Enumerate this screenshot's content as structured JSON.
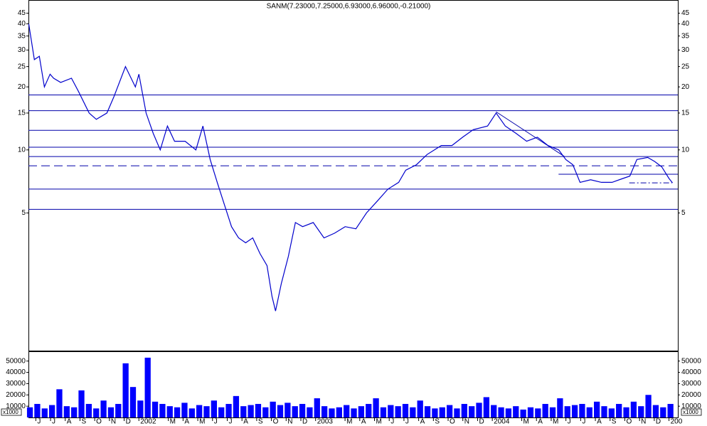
{
  "chart_data": [
    {
      "type": "line",
      "title": "SANM(7.23000,7.25000,6.93000,6.96000,-0.21000)",
      "log_scale": true,
      "color": "#0000cc",
      "xlim": [
        -0.5,
        43.6
      ],
      "ylim": [
        1.1,
        52
      ],
      "yticks": [
        5,
        10,
        15,
        20,
        25,
        30,
        35,
        40,
        45
      ],
      "x": [
        -0.48,
        -0.1,
        0.24,
        0.58,
        0.97,
        1.21,
        1.69,
        2.42,
        2.9,
        3.62,
        4.11,
        4.83,
        5.31,
        6.09,
        6.76,
        7.0,
        7.49,
        7.97,
        8.45,
        8.94,
        9.42,
        10.14,
        10.87,
        11.35,
        11.84,
        12.32,
        12.8,
        13.29,
        13.77,
        14.25,
        14.73,
        15.22,
        15.7,
        16.04,
        16.28,
        16.67,
        17.15,
        17.63,
        18.12,
        18.84,
        19.57,
        20.29,
        21.01,
        21.74,
        22.46,
        23.19,
        23.91,
        24.64,
        25.12,
        25.85,
        26.57,
        27.54,
        28.26,
        28.99,
        29.71,
        30.68,
        31.26,
        31.88,
        32.61,
        33.33,
        34.06,
        34.78,
        35.51,
        35.99,
        36.47,
        36.96,
        37.68,
        38.41,
        39.13,
        39.86,
        40.34,
        40.82,
        41.55,
        42.03,
        42.51,
        43.0,
        43.24
      ],
      "values": [
        40,
        27,
        28,
        20,
        23,
        22,
        21,
        22,
        19,
        15,
        14,
        15,
        18,
        25,
        20,
        23,
        15,
        12,
        10,
        13,
        11,
        11,
        10,
        13,
        9,
        7,
        5.5,
        4.3,
        3.8,
        3.6,
        3.8,
        3.2,
        2.8,
        2.0,
        1.7,
        2.3,
        3.1,
        4.5,
        4.3,
        4.5,
        3.8,
        4.0,
        4.3,
        4.2,
        5.0,
        5.7,
        6.5,
        7.0,
        8.0,
        8.5,
        9.5,
        10.5,
        10.5,
        11.5,
        12.5,
        13,
        15,
        13,
        12,
        11,
        11.5,
        10.5,
        10,
        9,
        8.5,
        7,
        7.2,
        7,
        7,
        7.3,
        7.5,
        9,
        9.2,
        8.8,
        8.3,
        7.3,
        6.96
      ],
      "levels": [
        {
          "value": 18.3,
          "style": "solid"
        },
        {
          "value": 15.4,
          "style": "solid"
        },
        {
          "value": 12.4,
          "style": "solid"
        },
        {
          "value": 10.3,
          "style": "solid"
        },
        {
          "value": 9.3,
          "style": "solid"
        },
        {
          "value": 8.4,
          "style": "dashed"
        },
        {
          "value": 6.5,
          "style": "solid"
        },
        {
          "value": 5.2,
          "style": "solid"
        },
        {
          "value": 7.65,
          "style": "solid",
          "x_range": [
            35.5,
            43.6
          ]
        },
        {
          "value": 6.96,
          "style": "dashdot",
          "x_range": [
            40.3,
            43.2
          ]
        }
      ],
      "trendlines": [
        {
          "x": [
            31.26,
            35.9
          ],
          "y": [
            15.2,
            9.3
          ]
        }
      ]
    },
    {
      "type": "bar",
      "color": "#0000ff",
      "unit_label": "x1000",
      "xlim": [
        -0.5,
        43.6
      ],
      "ylim": [
        0,
        58000
      ],
      "yticks": [
        10000,
        20000,
        30000,
        40000,
        50000
      ],
      "xticks": [
        {
          "value": 0,
          "label": "J"
        },
        {
          "value": 1,
          "label": "J"
        },
        {
          "value": 2,
          "label": "A"
        },
        {
          "value": 3,
          "label": "S"
        },
        {
          "value": 4,
          "label": "O"
        },
        {
          "value": 5,
          "label": "N"
        },
        {
          "value": 6,
          "label": "D"
        },
        {
          "value": 7,
          "label": "2002"
        },
        {
          "value": 9,
          "label": "M"
        },
        {
          "value": 10,
          "label": "A"
        },
        {
          "value": 11,
          "label": "M"
        },
        {
          "value": 12,
          "label": "J"
        },
        {
          "value": 13,
          "label": "J"
        },
        {
          "value": 14,
          "label": "A"
        },
        {
          "value": 15,
          "label": "S"
        },
        {
          "value": 16,
          "label": "O"
        },
        {
          "value": 17,
          "label": "N"
        },
        {
          "value": 18,
          "label": "D"
        },
        {
          "value": 19,
          "label": "2003"
        },
        {
          "value": 21,
          "label": "M"
        },
        {
          "value": 22,
          "label": "A"
        },
        {
          "value": 23,
          "label": "M"
        },
        {
          "value": 24,
          "label": "J"
        },
        {
          "value": 25,
          "label": "J"
        },
        {
          "value": 26,
          "label": "A"
        },
        {
          "value": 27,
          "label": "S"
        },
        {
          "value": 28,
          "label": "O"
        },
        {
          "value": 29,
          "label": "N"
        },
        {
          "value": 30,
          "label": "D"
        },
        {
          "value": 31,
          "label": "2004"
        },
        {
          "value": 33,
          "label": "M"
        },
        {
          "value": 34,
          "label": "A"
        },
        {
          "value": 35,
          "label": "M"
        },
        {
          "value": 36,
          "label": "J"
        },
        {
          "value": 37,
          "label": "J"
        },
        {
          "value": 38,
          "label": "A"
        },
        {
          "value": 39,
          "label": "S"
        },
        {
          "value": 40,
          "label": "O"
        },
        {
          "value": 41,
          "label": "N"
        },
        {
          "value": 42,
          "label": "D"
        },
        {
          "value": 43,
          "label": "200"
        }
      ],
      "x": [
        -0.4,
        0.1,
        0.6,
        1.1,
        1.6,
        2.1,
        2.6,
        3.1,
        3.6,
        4.1,
        4.6,
        5.1,
        5.6,
        6.1,
        6.6,
        7.1,
        7.6,
        8.1,
        8.6,
        9.1,
        9.6,
        10.1,
        10.6,
        11.1,
        11.6,
        12.1,
        12.6,
        13.1,
        13.6,
        14.1,
        14.6,
        15.1,
        15.6,
        16.1,
        16.6,
        17.1,
        17.6,
        18.1,
        18.6,
        19.1,
        19.6,
        20.1,
        20.6,
        21.1,
        21.6,
        22.1,
        22.6,
        23.1,
        23.6,
        24.1,
        24.6,
        25.1,
        25.6,
        26.1,
        26.6,
        27.1,
        27.6,
        28.1,
        28.6,
        29.1,
        29.6,
        30.1,
        30.6,
        31.1,
        31.6,
        32.1,
        32.6,
        33.1,
        33.6,
        34.1,
        34.6,
        35.1,
        35.6,
        36.1,
        36.6,
        37.1,
        37.6,
        38.1,
        38.6,
        39.1,
        39.6,
        40.1,
        40.6,
        41.1,
        41.6,
        42.1,
        42.6,
        43.1
      ],
      "values": [
        9000,
        12000,
        8000,
        11000,
        25000,
        10000,
        9000,
        24000,
        12000,
        8000,
        15000,
        9000,
        12000,
        48000,
        27000,
        15000,
        53000,
        14000,
        12000,
        10000,
        9000,
        13000,
        8000,
        11000,
        10000,
        15000,
        9000,
        12000,
        19000,
        10000,
        11000,
        12000,
        9000,
        14000,
        11000,
        13000,
        10000,
        12000,
        9000,
        17000,
        10000,
        8000,
        9000,
        11000,
        8000,
        10000,
        12000,
        17000,
        9000,
        11000,
        10000,
        12000,
        9000,
        15000,
        10000,
        8000,
        9000,
        11000,
        8000,
        12000,
        10000,
        13000,
        18000,
        11000,
        9000,
        8000,
        10000,
        7000,
        9000,
        8000,
        12000,
        9000,
        17000,
        10000,
        11000,
        12000,
        9000,
        14000,
        10000,
        8000,
        12000,
        9000,
        14000,
        10000,
        20000,
        11000,
        9000,
        12000
      ]
    }
  ]
}
